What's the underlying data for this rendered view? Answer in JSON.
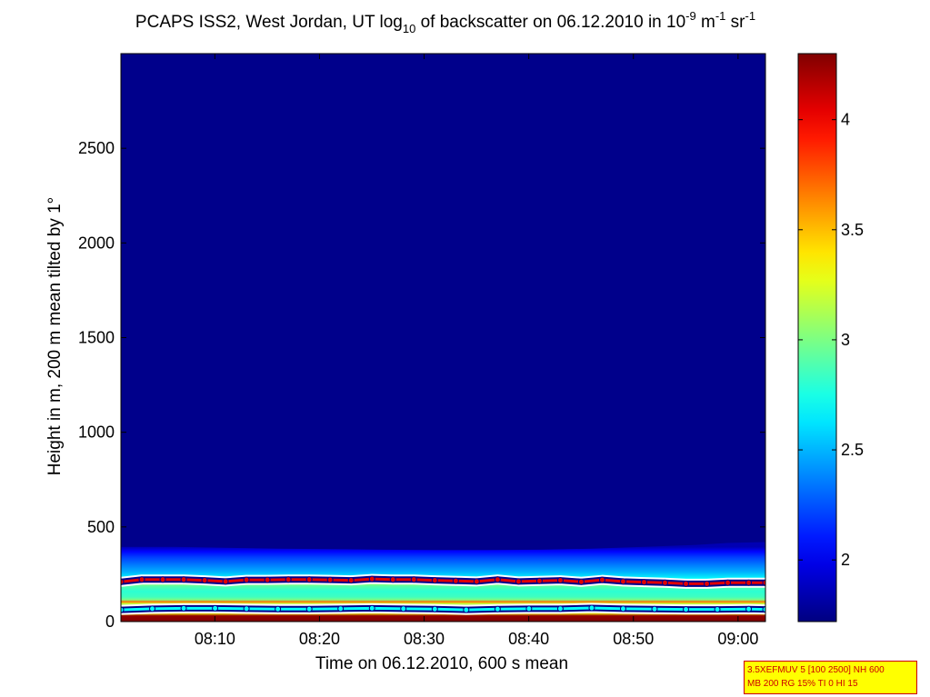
{
  "chart_data": {
    "type": "heatmap",
    "title": {
      "prefix": "PCAPS ISS2, West Jordan, UT log",
      "prefix_sub": "10",
      "middle": " of backscatter on 06.12.2010 in 10",
      "unit_sup1": "-9",
      "unit_mid": " m",
      "unit_sup2": "-1",
      "unit_mid2": " sr",
      "unit_sup3": "-1"
    },
    "xlabel": "Time on 06.12.2010, 600 s mean",
    "ylabel": "Height in m, 200 m mean tilted by 1°",
    "x_tick_labels": [
      "08:10",
      "08:20",
      "08:30",
      "08:40",
      "08:50",
      "09:00"
    ],
    "x_ticks_min": [
      8.98,
      18.98,
      28.98,
      38.98,
      48.98,
      58.98
    ],
    "xlim_min": [
      0,
      61.6
    ],
    "y_ticks": [
      0,
      500,
      1000,
      1500,
      2000,
      2500
    ],
    "ylim": [
      0,
      3000
    ],
    "colorbar": {
      "ticks": [
        2,
        2.5,
        3,
        3.5,
        4
      ],
      "range": [
        1.72,
        4.3
      ],
      "colormap": "jet"
    },
    "background_value": 1.75,
    "layer_top_m": [
      395,
      395,
      390,
      385,
      383,
      380,
      378,
      378,
      380,
      385,
      395,
      405,
      415,
      420
    ],
    "layer_top_x_min": [
      0,
      5,
      10,
      15,
      20,
      25,
      30,
      35,
      40,
      45,
      50,
      55,
      58,
      61.6
    ],
    "layer_profile": [
      {
        "h": 0,
        "v": 4.3
      },
      {
        "h": 30,
        "v": 4.25
      },
      {
        "h": 45,
        "v": 3.3
      },
      {
        "h": 60,
        "v": 2.6
      },
      {
        "h": 75,
        "v": 2.9
      },
      {
        "h": 95,
        "v": 3.2
      },
      {
        "h": 105,
        "v": 3.7
      },
      {
        "h": 115,
        "v": 3.0
      },
      {
        "h": 130,
        "v": 2.85
      },
      {
        "h": 160,
        "v": 2.8
      },
      {
        "h": 185,
        "v": 2.9
      },
      {
        "h": 205,
        "v": 3.1
      },
      {
        "h": 225,
        "v": 2.7
      },
      {
        "h": 260,
        "v": 2.5
      },
      {
        "h": 300,
        "v": 2.35
      },
      {
        "h": 340,
        "v": 2.2
      },
      {
        "h": 370,
        "v": 2.05
      },
      {
        "h": 395,
        "v": 1.85
      }
    ],
    "series": [
      {
        "marker_color": "#e00000",
        "x_min": [
          0,
          2,
          4,
          6,
          8,
          10,
          12,
          14,
          16,
          18,
          20,
          22,
          24,
          26,
          28,
          30,
          32,
          34,
          36,
          38,
          40,
          42,
          44,
          46,
          48,
          50,
          52,
          54,
          56,
          58,
          60,
          61.6
        ],
        "y_m": [
          210,
          222,
          222,
          222,
          218,
          212,
          220,
          220,
          222,
          222,
          220,
          218,
          225,
          222,
          222,
          218,
          215,
          212,
          222,
          212,
          215,
          218,
          210,
          220,
          212,
          208,
          205,
          200,
          200,
          205,
          205,
          205
        ]
      },
      {
        "marker_color": "#00ffff",
        "x_min": [
          0,
          3,
          6,
          9,
          12,
          15,
          18,
          21,
          24,
          27,
          30,
          33,
          36,
          39,
          42,
          45,
          48,
          51,
          54,
          57,
          60,
          61.6
        ],
        "y_m": [
          62,
          68,
          70,
          70,
          68,
          66,
          66,
          68,
          70,
          68,
          66,
          62,
          66,
          68,
          68,
          72,
          68,
          66,
          64,
          64,
          66,
          64
        ]
      }
    ]
  },
  "info_box": {
    "line1": "3.5XEFMUV 5 [100 2500] NH 600",
    "line2": "MB 200 RG 15% TI 0 HI 15",
    "background": "#ffff00",
    "text_color": "#cc0000"
  }
}
